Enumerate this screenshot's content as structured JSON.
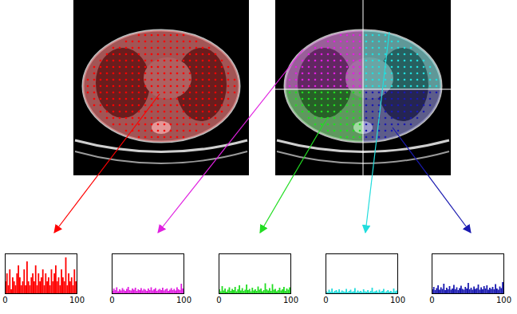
{
  "chart_data": [
    {
      "type": "histogram",
      "color": "#ff0000",
      "xlim": [
        0,
        100
      ],
      "xticks": [
        0,
        100
      ],
      "ylim": [
        0,
        10
      ],
      "tick_labels": "x",
      "bins": [
        0,
        2,
        4,
        6,
        8,
        10,
        12,
        14,
        16,
        18,
        20,
        22,
        24,
        26,
        28,
        30,
        32,
        34,
        36,
        38,
        40,
        42,
        44,
        46,
        48,
        50,
        52,
        54,
        56,
        58,
        60,
        62,
        64,
        66,
        68,
        70,
        72,
        74,
        76,
        78,
        80,
        82,
        84,
        86,
        88,
        90,
        92,
        94,
        96,
        98,
        100
      ],
      "values": [
        3,
        5,
        2,
        6,
        1,
        4,
        3,
        2,
        5,
        7,
        4,
        2,
        3,
        6,
        2,
        8,
        3,
        2,
        4,
        5,
        3,
        7,
        2,
        5,
        3,
        4,
        6,
        2,
        5,
        3,
        4,
        2,
        6,
        3,
        5,
        7,
        3,
        4,
        2,
        6,
        4,
        3,
        9,
        2,
        5,
        3,
        4,
        2,
        6,
        3
      ]
    },
    {
      "type": "histogram",
      "color": "#e020e0",
      "xlim": [
        0,
        100
      ],
      "xticks": [
        0,
        100
      ],
      "ylim": [
        0,
        10
      ],
      "tick_labels": "x",
      "bins": [
        0,
        2,
        4,
        6,
        8,
        10,
        12,
        14,
        16,
        18,
        20,
        22,
        24,
        26,
        28,
        30,
        32,
        34,
        36,
        38,
        40,
        42,
        44,
        46,
        48,
        50,
        52,
        54,
        56,
        58,
        60,
        62,
        64,
        66,
        68,
        70,
        72,
        74,
        76,
        78,
        80,
        82,
        84,
        86,
        88,
        90,
        92,
        94,
        96,
        98,
        100
      ],
      "values": [
        0.6,
        1.2,
        0.8,
        1.5,
        0.5,
        1.0,
        0.7,
        1.3,
        0.9,
        0.6,
        1.1,
        1.6,
        0.8,
        0.7,
        1.2,
        0.9,
        1.4,
        0.6,
        1.0,
        0.8,
        1.3,
        0.7,
        1.1,
        0.9,
        0.6,
        1.2,
        0.8,
        1.5,
        0.7,
        1.0,
        1.3,
        0.6,
        0.9,
        1.1,
        0.8,
        1.4,
        0.7,
        1.0,
        1.2,
        0.6,
        0.9,
        1.3,
        0.8,
        1.1,
        0.7,
        1.5,
        1.0,
        0.8,
        2.4,
        1.2
      ]
    },
    {
      "type": "histogram",
      "color": "#22dd22",
      "xlim": [
        0,
        100
      ],
      "xticks": [
        0,
        100
      ],
      "ylim": [
        0,
        10
      ],
      "tick_labels": "x",
      "bins": [
        0,
        2,
        4,
        6,
        8,
        10,
        12,
        14,
        16,
        18,
        20,
        22,
        24,
        26,
        28,
        30,
        32,
        34,
        36,
        38,
        40,
        42,
        44,
        46,
        48,
        50,
        52,
        54,
        56,
        58,
        60,
        62,
        64,
        66,
        68,
        70,
        72,
        74,
        76,
        78,
        80,
        82,
        84,
        86,
        88,
        90,
        92,
        94,
        96,
        98,
        100
      ],
      "values": [
        1.0,
        0.5,
        1.8,
        0.7,
        1.2,
        0.4,
        0.9,
        1.5,
        0.6,
        1.1,
        0.8,
        1.6,
        0.5,
        1.0,
        2.0,
        0.7,
        1.3,
        0.6,
        0.9,
        2.2,
        0.8,
        1.1,
        0.5,
        1.4,
        0.7,
        1.0,
        0.6,
        1.7,
        0.9,
        1.2,
        0.5,
        0.8,
        2.5,
        1.0,
        0.7,
        1.3,
        0.6,
        2.3,
        0.9,
        1.1,
        0.5,
        0.8,
        1.4,
        0.7,
        1.0,
        1.6,
        0.6,
        1.2,
        0.9,
        1.5
      ]
    },
    {
      "type": "histogram",
      "color": "#22dddd",
      "xlim": [
        0,
        100
      ],
      "xticks": [
        0,
        100
      ],
      "ylim": [
        0,
        10
      ],
      "tick_labels": "x",
      "bins": [
        0,
        2,
        4,
        6,
        8,
        10,
        12,
        14,
        16,
        18,
        20,
        22,
        24,
        26,
        28,
        30,
        32,
        34,
        36,
        38,
        40,
        42,
        44,
        46,
        48,
        50,
        52,
        54,
        56,
        58,
        60,
        62,
        64,
        66,
        68,
        70,
        72,
        74,
        76,
        78,
        80,
        82,
        84,
        86,
        88,
        90,
        92,
        94,
        96,
        98,
        100
      ],
      "values": [
        0.5,
        0.3,
        0.9,
        0.4,
        1.2,
        0.3,
        0.6,
        0.8,
        0.4,
        1.0,
        0.3,
        0.7,
        0.5,
        0.4,
        1.1,
        0.3,
        0.6,
        0.9,
        0.4,
        0.5,
        1.3,
        0.3,
        0.7,
        0.4,
        0.6,
        0.3,
        1.0,
        0.5,
        0.4,
        0.8,
        0.3,
        0.6,
        1.4,
        0.4,
        0.5,
        0.7,
        0.3,
        0.9,
        0.4,
        0.6,
        1.1,
        0.3,
        0.5,
        0.8,
        0.4,
        0.6,
        0.3,
        1.2,
        0.5,
        0.7
      ]
    },
    {
      "type": "histogram",
      "color": "#1a1ab0",
      "xlim": [
        0,
        100
      ],
      "xticks": [
        0,
        100
      ],
      "ylim": [
        0,
        10
      ],
      "tick_labels": "x",
      "bins": [
        0,
        2,
        4,
        6,
        8,
        10,
        12,
        14,
        16,
        18,
        20,
        22,
        24,
        26,
        28,
        30,
        32,
        34,
        36,
        38,
        40,
        42,
        44,
        46,
        48,
        50,
        52,
        54,
        56,
        58,
        60,
        62,
        64,
        66,
        68,
        70,
        72,
        74,
        76,
        78,
        80,
        82,
        84,
        86,
        88,
        90,
        92,
        94,
        96,
        98,
        100
      ],
      "values": [
        1.0,
        1.6,
        0.8,
        1.3,
        2.0,
        0.9,
        1.5,
        1.1,
        2.4,
        0.8,
        1.4,
        1.0,
        1.8,
        0.9,
        1.2,
        2.1,
        1.0,
        1.5,
        0.8,
        1.3,
        1.9,
        1.1,
        0.9,
        1.6,
        1.2,
        2.6,
        1.0,
        1.4,
        0.9,
        1.7,
        1.1,
        1.3,
        2.2,
        0.9,
        1.5,
        1.0,
        1.8,
        1.2,
        2.0,
        0.9,
        1.4,
        1.1,
        1.6,
        1.0,
        2.3,
        1.2,
        0.9,
        1.7,
        1.3,
        2.8
      ]
    }
  ]
}
